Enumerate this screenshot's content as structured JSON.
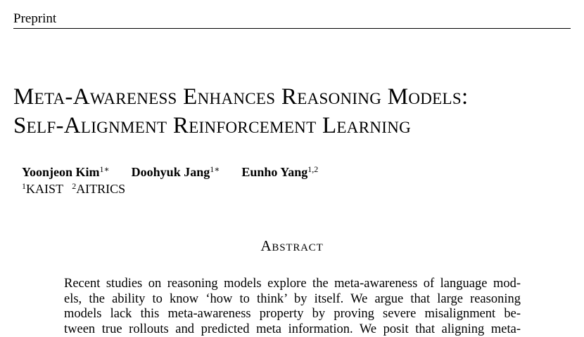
{
  "header": {
    "label": "Preprint"
  },
  "title": {
    "line1": "Meta-Awareness Enhances Reasoning Models:",
    "line2": "Self-Alignment Reinforcement Learning"
  },
  "authors": [
    {
      "name": "Yoonjeon Kim",
      "marks": "1∗"
    },
    {
      "name": "Doohyuk Jang",
      "marks": "1∗"
    },
    {
      "name": "Eunho Yang",
      "marks": "1,2"
    }
  ],
  "affiliations": [
    {
      "mark": "1",
      "name": "KAIST"
    },
    {
      "mark": "2",
      "name": "AITRICS"
    }
  ],
  "abstract": {
    "heading": "Abstract",
    "lines": [
      "Recent studies on reasoning models explore the meta-awareness of language mod-",
      "els, the ability to know ‘how to think’ by itself.  We argue that large reasoning",
      "models lack this meta-awareness property by proving severe misalignment be-",
      "tween true rollouts and predicted meta information. We posit that aligning meta-"
    ]
  }
}
